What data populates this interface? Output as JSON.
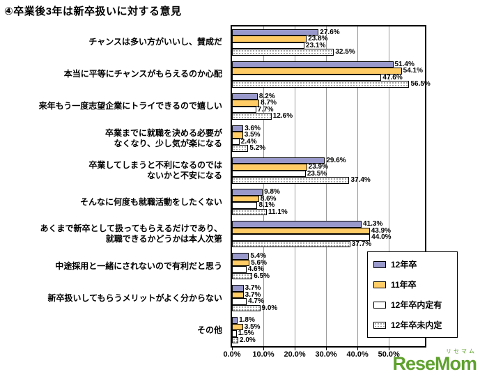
{
  "title": "④卒業後3年は新卒扱いに対する意見",
  "watermark": {
    "text": "ReseMom",
    "subtext": "リセマム",
    "color": "#5fa12e"
  },
  "chart_data": {
    "type": "bar",
    "orientation": "horizontal",
    "title": "④卒業後3年は新卒扱いに対する意見",
    "categories": [
      "チャンスは多い方がいいし、賛成だ",
      "本当に平等にチャンスがもらえるのか心配",
      "来年もう一度志望企業にトライできるので嬉しい",
      "卒業までに就職を決める必要が\nなくなり、少し気が楽になる",
      "卒業してしまうと不利になるのでは\nないかと不安になる",
      "そんなに何度も就職活動をしたくない",
      "あくまで新卒として扱ってもらえるだけであり、\n就職できるかどうかは本人次第",
      "中途採用と一緒にされないので有利だと思う",
      "新卒扱いしてもらうメリットがよく分からない",
      "その他"
    ],
    "series": [
      {
        "name": "12年卒",
        "fill": "#9999cc",
        "values": [
          27.6,
          51.4,
          8.2,
          3.6,
          29.6,
          9.8,
          41.3,
          5.4,
          3.7,
          1.8
        ]
      },
      {
        "name": "11年卒",
        "fill": "#ffcc66",
        "values": [
          23.8,
          54.1,
          8.7,
          3.5,
          23.9,
          8.6,
          43.9,
          5.6,
          3.7,
          3.5
        ]
      },
      {
        "name": "12年卒内定有",
        "fill": "#ffffff",
        "values": [
          23.1,
          47.6,
          7.7,
          2.4,
          23.5,
          8.1,
          44.0,
          4.6,
          4.7,
          1.5
        ]
      },
      {
        "name": "12年卒未内定",
        "fill": "#ffffff",
        "pattern": "dots",
        "values": [
          32.5,
          56.5,
          12.6,
          5.2,
          37.4,
          11.1,
          37.7,
          6.5,
          9.0,
          2.0
        ]
      }
    ],
    "x_tick_values": [
      0,
      10,
      20,
      30,
      40,
      50
    ],
    "x_tick_labels": [
      "0.0%",
      "10.0%",
      "20.0%",
      "30.0%",
      "40.0%",
      "50.0%"
    ],
    "gridline_values": [
      10,
      20,
      30,
      40,
      50
    ],
    "xlim": [
      0,
      61.5
    ],
    "value_suffix": "%",
    "grid": "vertical",
    "legend_position": "right-overlay"
  }
}
